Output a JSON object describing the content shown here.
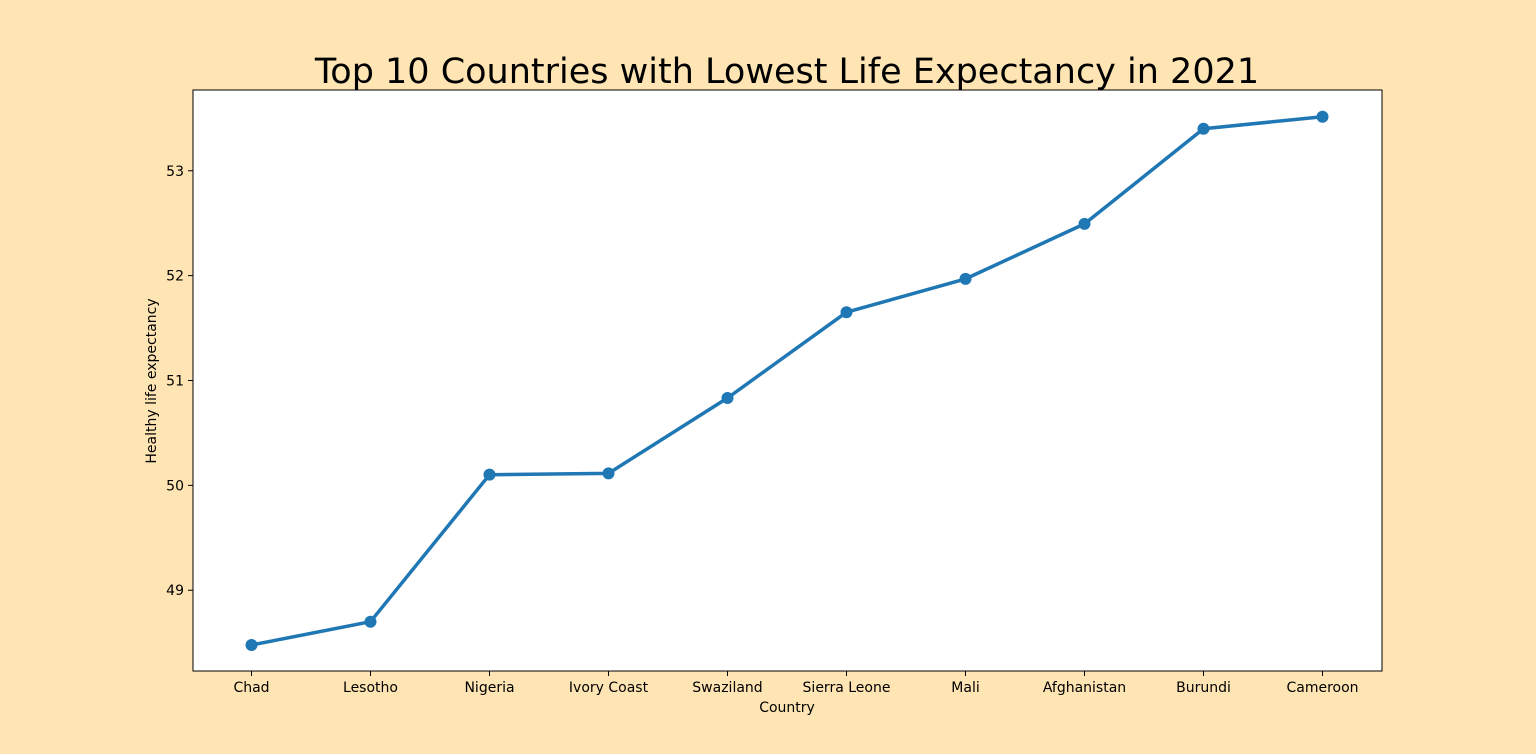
{
  "colors": {
    "figure_background": "#FFE5B4",
    "plot_background": "#FFFFFF",
    "line": "#1F77B4",
    "axes": "#000000"
  },
  "chart_data": {
    "type": "line",
    "title": "Top 10 Countries with Lowest Life Expectancy in 2021",
    "xlabel": "Country",
    "ylabel": "Healthy life expectancy",
    "categories": [
      "Chad",
      "Lesotho",
      "Nigeria",
      "Ivory Coast",
      "Swaziland",
      "Sierra Leone",
      "Mali",
      "Afghanistan",
      "Burundi",
      "Cameroon"
    ],
    "series": [
      {
        "values": [
          48.478,
          48.7,
          50.102,
          50.114,
          50.833,
          51.651,
          51.969,
          52.493,
          53.4,
          53.515
        ],
        "marker": "circle"
      }
    ],
    "yticks": [
      49,
      50,
      51,
      52,
      53
    ],
    "ylim": [
      48.23,
      53.77
    ],
    "grid": false,
    "legend": false
  }
}
